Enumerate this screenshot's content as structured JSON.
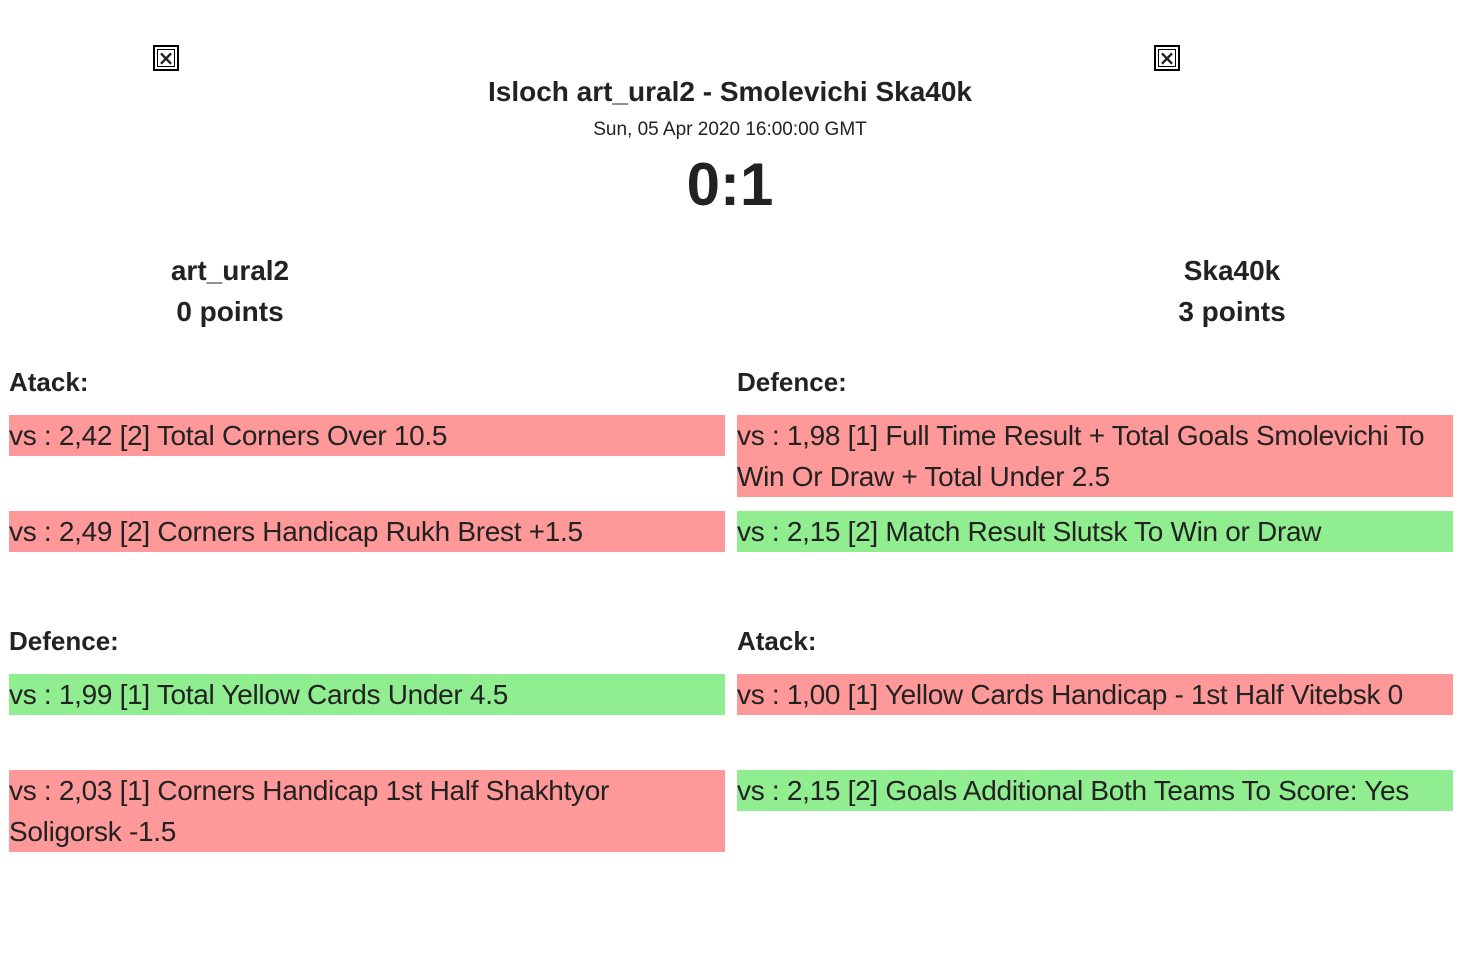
{
  "match": {
    "title": "Isloch art_ural2 - Smolevichi Ska40k",
    "date": "Sun, 05 Apr 2020 16:00:00 GMT",
    "score": "0:1"
  },
  "colors": {
    "lost": "#ff9999",
    "won": "#90ee90"
  },
  "home": {
    "name": "art_ural2",
    "points": "0 points",
    "icon": "broken-image-icon",
    "sections": [
      {
        "title": "Atack:",
        "bets": [
          {
            "text": "vs : 2,42 [2] Total Corners Over 10.5",
            "result": "lost"
          },
          {
            "text": "vs : 2,49 [2] Corners Handicap Rukh Brest +1.5",
            "result": "lost"
          }
        ]
      },
      {
        "title": "Defence:",
        "bets": [
          {
            "text": "vs : 1,99 [1] Total Yellow Cards Under 4.5",
            "result": "won"
          },
          {
            "text": "vs : 2,03 [1] Corners Handicap 1st Half Shakhtyor Soligorsk -1.5",
            "result": "lost"
          }
        ]
      }
    ]
  },
  "away": {
    "name": "Ska40k",
    "points": "3 points",
    "icon": "broken-image-icon",
    "sections": [
      {
        "title": "Defence:",
        "bets": [
          {
            "text": "vs : 1,98 [1] Full Time Result + Total Goals Smolevichi To Win Or Draw + Total Under 2.5",
            "result": "lost"
          },
          {
            "text": "vs : 2,15 [2] Match Result Slutsk To Win or Draw",
            "result": "won"
          }
        ]
      },
      {
        "title": "Atack:",
        "bets": [
          {
            "text": "vs : 1,00 [1] Yellow Cards Handicap - 1st Half Vitebsk 0",
            "result": "lost"
          },
          {
            "text": "vs : 2,15 [2] Goals Additional Both Teams To Score: Yes",
            "result": "won"
          }
        ]
      }
    ]
  }
}
